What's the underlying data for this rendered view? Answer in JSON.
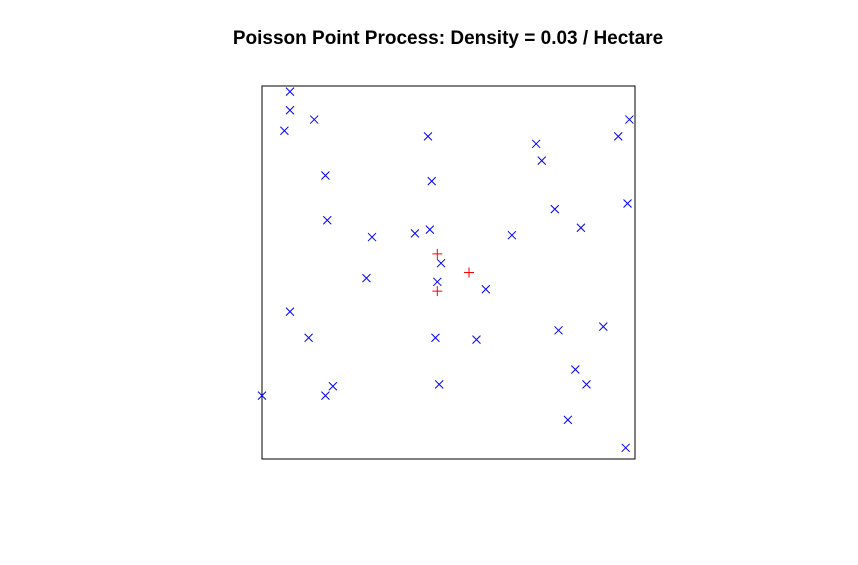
{
  "chart_data": {
    "type": "scatter",
    "title": "Poisson Point Process: Density = 0.03 / Hectare",
    "xlim": [
      0,
      1
    ],
    "ylim": [
      0,
      1
    ],
    "axes_shown": false,
    "grid": false,
    "colors": {
      "cross": "#0000ff",
      "plus": "#ff0000",
      "frame": "#000000"
    },
    "series": [
      {
        "marker": "x",
        "color": "#0000ff",
        "points": [
          [
            0.075,
            0.985
          ],
          [
            0.075,
            0.935
          ],
          [
            0.06,
            0.88
          ],
          [
            0.14,
            0.91
          ],
          [
            0.445,
            0.865
          ],
          [
            0.735,
            0.845
          ],
          [
            0.75,
            0.8
          ],
          [
            0.955,
            0.865
          ],
          [
            0.985,
            0.91
          ],
          [
            0.17,
            0.76
          ],
          [
            0.455,
            0.745
          ],
          [
            0.175,
            0.64
          ],
          [
            0.295,
            0.595
          ],
          [
            0.41,
            0.605
          ],
          [
            0.45,
            0.615
          ],
          [
            0.785,
            0.67
          ],
          [
            0.855,
            0.62
          ],
          [
            0.98,
            0.685
          ],
          [
            0.67,
            0.6
          ],
          [
            0.48,
            0.525
          ],
          [
            0.28,
            0.485
          ],
          [
            0.47,
            0.475
          ],
          [
            0.6,
            0.455
          ],
          [
            0.075,
            0.395
          ],
          [
            0.125,
            0.325
          ],
          [
            0.465,
            0.325
          ],
          [
            0.575,
            0.32
          ],
          [
            0.795,
            0.345
          ],
          [
            0.915,
            0.355
          ],
          [
            0.84,
            0.24
          ],
          [
            0.87,
            0.2
          ],
          [
            0.475,
            0.2
          ],
          [
            0.0,
            0.17
          ],
          [
            0.17,
            0.17
          ],
          [
            0.19,
            0.195
          ],
          [
            0.82,
            0.105
          ],
          [
            0.975,
            0.03
          ]
        ]
      },
      {
        "marker": "+",
        "color": "#ff0000",
        "points": [
          [
            0.47,
            0.55
          ],
          [
            0.555,
            0.5
          ],
          [
            0.47,
            0.45
          ]
        ]
      }
    ]
  }
}
